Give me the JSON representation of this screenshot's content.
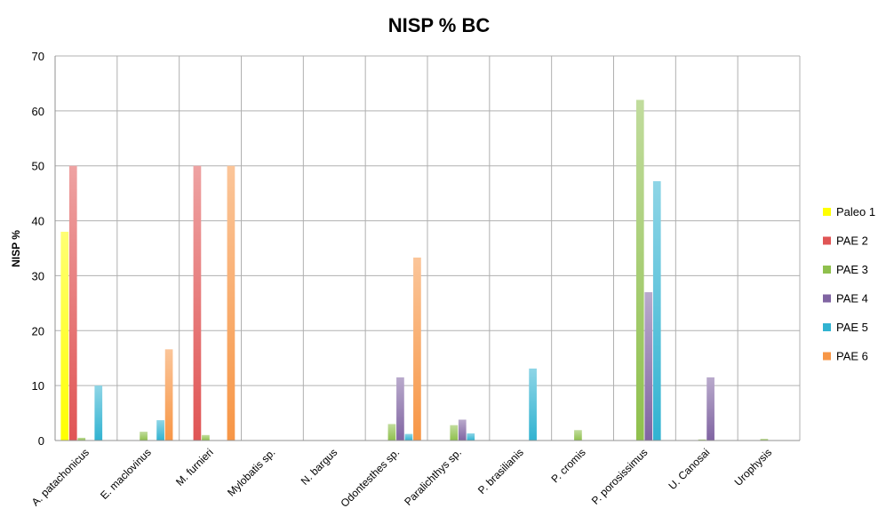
{
  "chart_data": {
    "type": "bar",
    "title": "NISP % BC",
    "xlabel": "",
    "ylabel": "NISP %",
    "ylim": [
      0,
      70
    ],
    "yticks": [
      "0",
      "10",
      "20",
      "30",
      "40",
      "50",
      "60",
      "70"
    ],
    "grid": true,
    "legend_position": "right",
    "categories": [
      "A. patachonicus",
      "E. maclovinus",
      "M. furnieri",
      "Mylobatis sp.",
      "N. bargus",
      "Odontesthes sp.",
      "Paralichthys sp.",
      "P. brasilianis",
      "P. cromis",
      "P. porosissimus",
      "U. Canosai",
      "Urophysis"
    ],
    "series": [
      {
        "name": "Paleo 1",
        "color": "#ffff00",
        "values": [
          38,
          0,
          0,
          0,
          0,
          0,
          0,
          0,
          0,
          0,
          0,
          0
        ]
      },
      {
        "name": "PAE 2",
        "color": "#e05555",
        "values": [
          50,
          0,
          50,
          0,
          0,
          0,
          0,
          0,
          0,
          0,
          0,
          0
        ]
      },
      {
        "name": "PAE 3",
        "color": "#8fc04d",
        "values": [
          0.5,
          1.6,
          1,
          0,
          0,
          3,
          2.8,
          0,
          1.9,
          62,
          0.2,
          0.3
        ]
      },
      {
        "name": "PAE 4",
        "color": "#8064a2",
        "values": [
          0,
          0,
          0,
          0,
          0,
          11.5,
          3.8,
          0,
          0,
          27,
          11.5,
          0
        ]
      },
      {
        "name": "PAE 5",
        "color": "#31b3d1",
        "values": [
          10,
          3.7,
          0,
          0,
          0,
          1.2,
          1.3,
          13.1,
          0,
          47.2,
          0,
          0
        ]
      },
      {
        "name": "PAE 6",
        "color": "#f79646",
        "values": [
          0,
          16.6,
          50,
          0,
          0,
          33.3,
          0,
          0,
          0,
          0,
          0,
          0
        ]
      }
    ]
  }
}
